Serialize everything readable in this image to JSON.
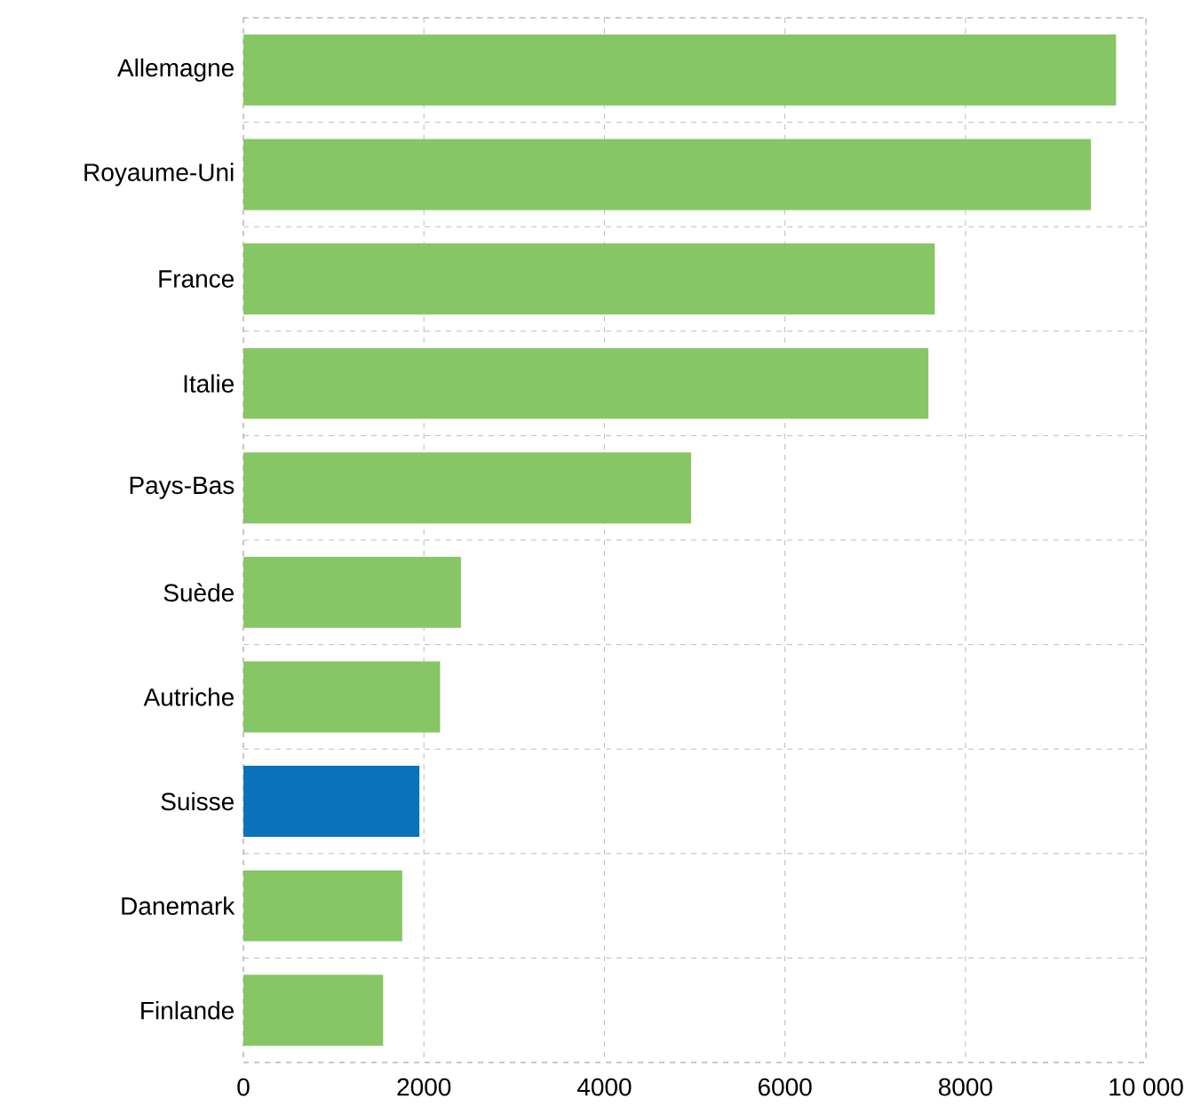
{
  "chart_data": {
    "type": "bar",
    "orientation": "horizontal",
    "categories": [
      "Allemagne",
      "Royaume-Uni",
      "France",
      "Italie",
      "Pays-Bas",
      "Suède",
      "Autriche",
      "Suisse",
      "Danemark",
      "Finlande"
    ],
    "values": [
      9670,
      9390,
      7660,
      7590,
      4960,
      2410,
      2180,
      1950,
      1760,
      1550
    ],
    "colors": [
      "#86c664",
      "#86c664",
      "#86c664",
      "#86c664",
      "#86c664",
      "#86c664",
      "#86c664",
      "#0a72ba",
      "#86c664",
      "#86c664"
    ],
    "xlim": [
      0,
      10000
    ],
    "xticks": [
      0,
      2000,
      4000,
      6000,
      8000,
      {
        "value": 10000,
        "label": "10 000"
      }
    ],
    "grid": true
  }
}
